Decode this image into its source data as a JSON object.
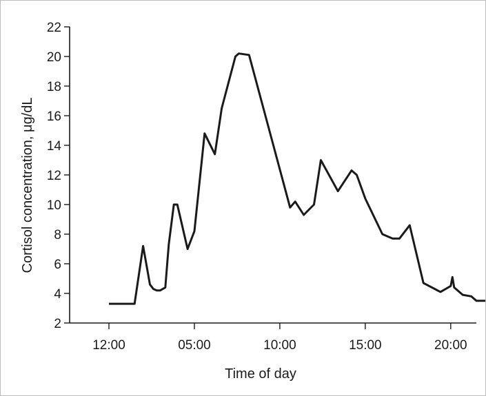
{
  "chart_data": {
    "type": "line",
    "title": "",
    "xlabel": "Time of day",
    "ylabel": "Cortisol concentration, μg/dL",
    "ylim": [
      2,
      22
    ],
    "yticks": [
      2,
      4,
      6,
      8,
      10,
      12,
      14,
      16,
      18,
      20,
      22
    ],
    "xlim": [
      -2.3,
      21.5
    ],
    "xticks": [
      {
        "value": 0,
        "label": "12:00"
      },
      {
        "value": 5,
        "label": "05:00"
      },
      {
        "value": 10,
        "label": "10:00"
      },
      {
        "value": 15,
        "label": "15:00"
      },
      {
        "value": 20,
        "label": "20:00"
      }
    ],
    "grid": false,
    "legend": "none",
    "line_color": "#1a1a1a",
    "series": [
      {
        "x": [
          0,
          1.5,
          2.0,
          2.4,
          2.6,
          2.8,
          3.0,
          3.3,
          3.5,
          3.8,
          4.0,
          4.6,
          5.0,
          5.6,
          6.2,
          6.6,
          7.4,
          7.6,
          8.2,
          10.6,
          10.9,
          11.4,
          12.0,
          12.4,
          13.4,
          14.2,
          14.5,
          15.0,
          16.0,
          16.6,
          17.0,
          17.6,
          18.4,
          19.4,
          20.0,
          20.1,
          20.2,
          20.7,
          21.2,
          21.5,
          21.8,
          22.2
        ],
        "y": [
          3.3,
          3.3,
          7.2,
          4.6,
          4.3,
          4.2,
          4.2,
          4.4,
          7.3,
          10.0,
          10.0,
          7.0,
          8.2,
          14.8,
          13.4,
          16.5,
          20.0,
          20.2,
          20.1,
          9.8,
          10.2,
          9.3,
          10.0,
          13.0,
          10.9,
          12.3,
          12.0,
          10.4,
          8.0,
          7.7,
          7.7,
          8.6,
          4.7,
          4.1,
          4.5,
          5.1,
          4.4,
          3.9,
          3.8,
          3.5,
          3.5,
          3.5
        ]
      }
    ]
  }
}
